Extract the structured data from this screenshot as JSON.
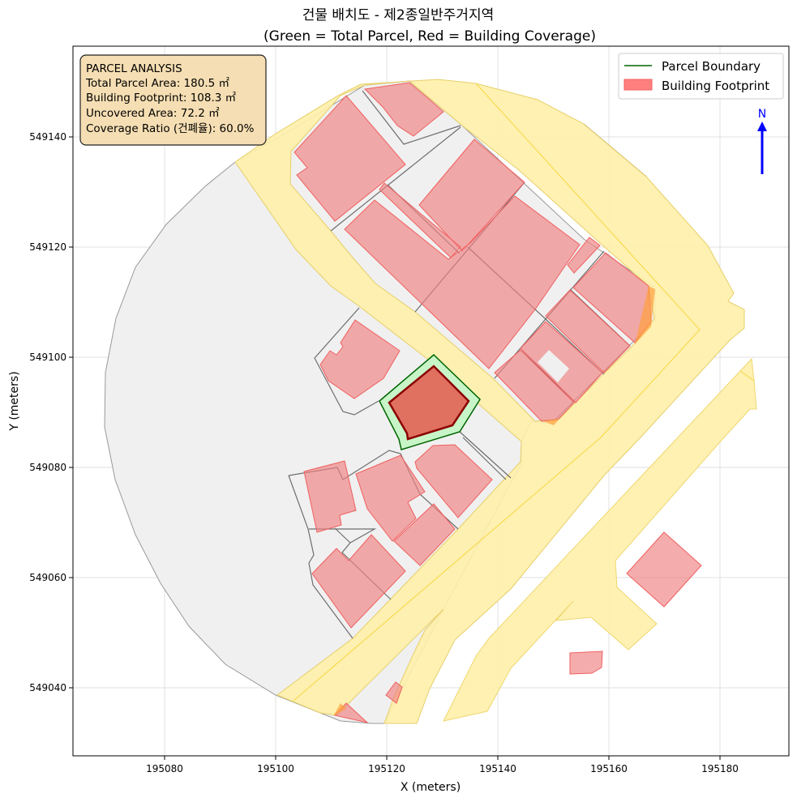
{
  "title": {
    "line1": "건물 배치도 - 제2종일반주거지역",
    "line2": "(Green = Total Parcel, Red = Building Coverage)"
  },
  "axes": {
    "xlabel": "X (meters)",
    "ylabel": "Y (meters)",
    "xticks": [
      "195080",
      "195100",
      "195120",
      "195140",
      "195160",
      "195180"
    ],
    "yticks": [
      "549140",
      "549120",
      "549100",
      "549080",
      "549060",
      "549040"
    ],
    "grid": true
  },
  "info_box": {
    "heading": "PARCEL ANALYSIS",
    "total_parcel_area": "Total Parcel Area: 180.5 ㎡",
    "building_footprint": "Building Footprint: 108.3 ㎡",
    "uncovered_area": "Uncovered Area: 72.2 ㎡",
    "coverage_ratio": "Coverage Ratio (건폐율): 60.0%"
  },
  "legend": {
    "placement": "top-right",
    "items": [
      {
        "label": "Parcel Boundary",
        "color": "#006400"
      },
      {
        "label": "Building Footprint",
        "color": "#ff7f7f"
      }
    ]
  },
  "north_arrow": {
    "label": "N",
    "color": "#0000ff"
  },
  "colors": {
    "road": "#fff0a8",
    "parcel_fill": "#f0f0f0",
    "building": "#f08080",
    "target_parcel": "#c8f5c8",
    "target_building": "#e07060",
    "target_building_edge": "#8b0000"
  }
}
